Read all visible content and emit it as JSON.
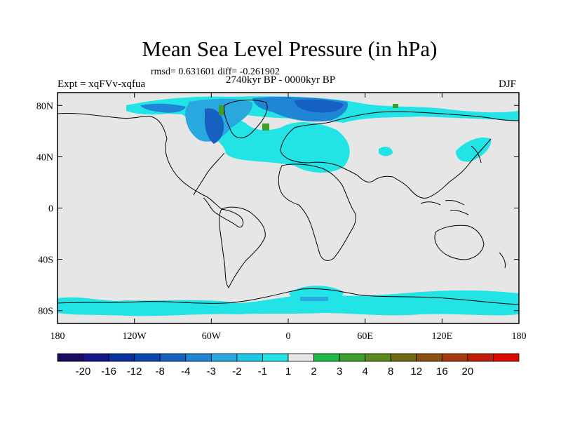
{
  "title": "Mean Sea Level Pressure (in hPa)",
  "stats": "rmsd= 0.631601 diff= -0.261902",
  "period": "2740kyr BP - 0000kyr BP",
  "experiment": "Expt = xqFVv-xqfua",
  "season": "DJF",
  "axes": {
    "y_ticks": [
      {
        "label": "80N",
        "lat": 80
      },
      {
        "label": "40N",
        "lat": 40
      },
      {
        "label": "0",
        "lat": 0
      },
      {
        "label": "40S",
        "lat": -40
      },
      {
        "label": "80S",
        "lat": -80
      }
    ],
    "x_ticks": [
      {
        "label": "180",
        "lon": -180
      },
      {
        "label": "120W",
        "lon": -120
      },
      {
        "label": "60W",
        "lon": -60
      },
      {
        "label": "0",
        "lon": 0
      },
      {
        "label": "60E",
        "lon": 60
      },
      {
        "label": "120E",
        "lon": 120
      },
      {
        "label": "180",
        "lon": 180
      }
    ]
  },
  "colorbar": {
    "colors": [
      "#1c0a5e",
      "#13178a",
      "#0a2fa0",
      "#0a45b0",
      "#1560c0",
      "#1f86d6",
      "#29a8df",
      "#20c6e6",
      "#22e4e6",
      "#e6e6e6",
      "#1eb94a",
      "#3c9e2c",
      "#5a8a1e",
      "#6e6a14",
      "#8a5010",
      "#a5380c",
      "#c01e08",
      "#dc0a04"
    ],
    "labels": [
      "-20",
      "-16",
      "-12",
      "-8",
      "-4",
      "-3",
      "-2",
      "-1",
      "1",
      "2",
      "3",
      "4",
      "8",
      "12",
      "16",
      "20"
    ]
  }
}
